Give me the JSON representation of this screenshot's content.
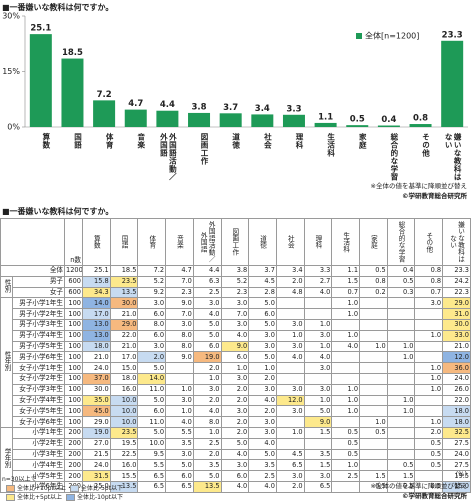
{
  "chart_data": {
    "type": "bar",
    "title": "■一番嫌いな教科は何ですか。",
    "categories": [
      "算数",
      "国語",
      "体育",
      "音楽",
      "外国語活動／外国語",
      "図画工作",
      "道徳",
      "社会",
      "理科",
      "生活科",
      "家庭",
      "総合的な学習",
      "その他",
      "嫌いな教科はない"
    ],
    "series": [
      {
        "name": "全体[n=1200]",
        "color": "#1e9a57",
        "values": [
          25.1,
          18.5,
          7.2,
          4.7,
          4.4,
          3.8,
          3.7,
          3.4,
          3.3,
          1.1,
          0.5,
          0.4,
          0.8,
          23.3
        ]
      }
    ],
    "ylim": [
      0,
      30
    ],
    "yticks": [
      {
        "value": 0,
        "label": "0%"
      },
      {
        "value": 15,
        "label": "15%"
      },
      {
        "value": 30,
        "label": "30%"
      }
    ],
    "grid": false,
    "legend": "top-right",
    "notes": [
      "※全体の値を基準に降順並び替え",
      "©学研教育総合研究所"
    ]
  },
  "table": {
    "title": "■一番嫌いな教科は何ですか。",
    "n_label": "n数",
    "unit": "(%)",
    "columns": [
      "算数",
      "国語",
      "体育",
      "音楽",
      "外国語活動／外国語",
      "図画工作",
      "道徳",
      "社会",
      "理科",
      "生活科",
      "家庭",
      "総合的な学習",
      "その他",
      "嫌いな教科はない"
    ],
    "total": {
      "label": "全体",
      "n": "1200",
      "values": [
        "25.1",
        "18.5",
        "7.2",
        "4.7",
        "4.4",
        "3.8",
        "3.7",
        "3.4",
        "3.3",
        "1.1",
        "0.5",
        "0.4",
        "0.8",
        "23.3"
      ]
    },
    "groups": [
      {
        "name": "性別",
        "rows": [
          {
            "label": "男子",
            "n": "600",
            "values": [
              "15.8",
              "23.5",
              "5.2",
              "7.0",
              "6.3",
              "5.2",
              "4.5",
              "2.0",
              "2.7",
              "1.5",
              "0.8",
              "0.5",
              "0.8",
              "24.2"
            ]
          },
          {
            "label": "女子",
            "n": "600",
            "values": [
              "34.3",
              "13.5",
              "9.2",
              "2.3",
              "2.5",
              "2.3",
              "2.8",
              "4.8",
              "4.0",
              "0.7",
              "0.2",
              "0.3",
              "0.7",
              "22.3"
            ]
          }
        ]
      },
      {
        "name": "性年別",
        "rows": [
          {
            "label": "男子小学1年生",
            "n": "100",
            "values": [
              "14.0",
              "30.0",
              "3.0",
              "9.0",
              "3.0",
              "3.0",
              "5.0",
              null,
              null,
              "1.0",
              null,
              null,
              "3.0",
              "29.0"
            ]
          },
          {
            "label": "男子小学2年生",
            "n": "100",
            "values": [
              "17.0",
              "21.0",
              "6.0",
              "7.0",
              "4.0",
              "7.0",
              "6.0",
              null,
              null,
              "1.0",
              null,
              null,
              null,
              "31.0"
            ]
          },
          {
            "label": "男子小学3年生",
            "n": "100",
            "values": [
              "13.0",
              "29.0",
              "8.0",
              "3.0",
              "5.0",
              "3.0",
              "5.0",
              "3.0",
              "1.0",
              null,
              null,
              null,
              null,
              "30.0"
            ]
          },
          {
            "label": "男子小学4年生",
            "n": "100",
            "values": [
              "13.0",
              "22.0",
              "6.0",
              "8.0",
              "5.0",
              "4.0",
              "3.0",
              "1.0",
              "3.0",
              "1.0",
              null,
              null,
              "1.0",
              "33.0"
            ]
          },
          {
            "label": "男子小学5年生",
            "n": "100",
            "values": [
              "18.0",
              "21.0",
              "3.0",
              "8.0",
              "6.0",
              "9.0",
              "3.0",
              "3.0",
              "1.0",
              "4.0",
              "1.0",
              "1.0",
              null,
              "21.0"
            ]
          },
          {
            "label": "男子小学6年生",
            "n": "100",
            "values": [
              "21.0",
              "17.0",
              "2.0",
              "9.0",
              "19.0",
              "6.0",
              "5.0",
              "4.0",
              "4.0",
              null,
              null,
              "1.0",
              null,
              "12.0"
            ]
          },
          {
            "label": "女子小学1年生",
            "n": "100",
            "values": [
              "24.0",
              "15.0",
              "5.0",
              null,
              "2.0",
              "1.0",
              "1.0",
              null,
              "3.0",
              null,
              null,
              null,
              "1.0",
              "36.0"
            ]
          },
          {
            "label": "女子小学2年生",
            "n": "100",
            "values": [
              "37.0",
              "18.0",
              "14.0",
              null,
              "1.0",
              "3.0",
              "2.0",
              null,
              null,
              null,
              null,
              null,
              "1.0",
              "24.0"
            ]
          },
          {
            "label": "女子小学3年生",
            "n": "100",
            "values": [
              "30.0",
              "16.0",
              "11.0",
              "1.0",
              "3.0",
              "2.0",
              "3.0",
              "3.0",
              "3.0",
              "1.0",
              null,
              null,
              "1.0",
              "26.0"
            ]
          },
          {
            "label": "女子小学4年生",
            "n": "100",
            "values": [
              "35.0",
              "10.0",
              "5.0",
              "3.0",
              "2.0",
              "2.0",
              "4.0",
              "12.0",
              "1.0",
              "1.0",
              null,
              "1.0",
              null,
              "22.0"
            ]
          },
          {
            "label": "女子小学5年生",
            "n": "100",
            "values": [
              "45.0",
              "10.0",
              "6.0",
              "1.0",
              "4.0",
              "3.0",
              "2.0",
              "3.0",
              "5.0",
              "1.0",
              null,
              "1.0",
              null,
              "18.0"
            ]
          },
          {
            "label": "女子小学6年生",
            "n": "100",
            "values": [
              "29.0",
              "10.0",
              "11.0",
              "4.0",
              "8.0",
              "2.0",
              "3.0",
              null,
              "9.0",
              null,
              "1.0",
              null,
              "1.0",
              "18.0"
            ]
          }
        ]
      },
      {
        "name": "学年別",
        "rows": [
          {
            "label": "小学1年生",
            "n": "200",
            "values": [
              "19.0",
              "23.5",
              "5.0",
              "5.5",
              "1.0",
              "2.0",
              "3.0",
              "1.0",
              "1.5",
              "0.5",
              "0.5",
              null,
              "2.0",
              "32.5"
            ]
          },
          {
            "label": "小学2年生",
            "n": "200",
            "values": [
              "27.0",
              "19.5",
              "10.0",
              "3.5",
              "2.5",
              "5.0",
              "4.0",
              null,
              null,
              "0.5",
              null,
              null,
              "0.5",
              "27.5"
            ]
          },
          {
            "label": "小学3年生",
            "n": "200",
            "values": [
              "21.5",
              "22.5",
              "9.5",
              "3.0",
              "2.0",
              "4.0",
              "5.0",
              "4.5",
              "3.5",
              "0.5",
              null,
              null,
              "0.5",
              "24.0"
            ]
          },
          {
            "label": "小学4年生",
            "n": "200",
            "values": [
              "24.0",
              "16.0",
              "5.5",
              "5.0",
              "3.5",
              "3.0",
              "3.5",
              "6.5",
              "1.5",
              "1.0",
              null,
              "0.5",
              "0.5",
              "27.5"
            ]
          },
          {
            "label": "小学5年生",
            "n": "200",
            "values": [
              "31.5",
              "15.5",
              "6.5",
              "6.0",
              "5.0",
              "6.0",
              "2.5",
              "3.0",
              "3.0",
              "2.5",
              "1.5",
              "1.5",
              null,
              "19.5"
            ]
          },
          {
            "label": "小学6年生",
            "n": "200",
            "values": [
              "25.0",
              "13.5",
              "6.5",
              "6.5",
              "13.5",
              "4.0",
              "4.0",
              "2.0",
              "6.5",
              null,
              "0.5",
              "0.5",
              "0.5",
              "15.0"
            ]
          }
        ]
      }
    ],
    "highlight_title": "n=30以上で",
    "highlights": [
      {
        "label": "全体比+10pt以上",
        "color": "#f6b97f",
        "threshold": 10
      },
      {
        "label": "全体比+5pt以上",
        "color": "#fde98c",
        "threshold": 5
      },
      {
        "label": "全体比-5pt以下",
        "color": "#c7dbf1",
        "threshold": -5
      },
      {
        "label": "全体比-10pt以下",
        "color": "#8fb4e2",
        "threshold": -10
      }
    ],
    "notes": [
      "※全体の値を基準に降順並び替え",
      "©学研教育総合研究所"
    ]
  }
}
